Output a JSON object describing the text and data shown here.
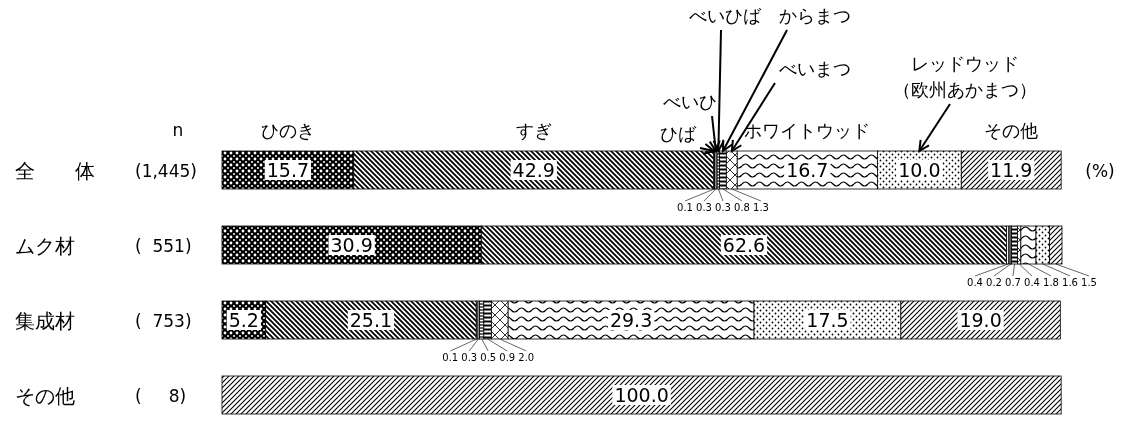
{
  "chart_data": {
    "type": "bar",
    "orientation": "horizontal",
    "stacked": true,
    "legend": false,
    "categories": [
      "全　　体",
      "ムク材",
      "集成材",
      "その他"
    ],
    "series": [
      {
        "name": "ひのき",
        "color": "#000000",
        "values": [
          15.7,
          30.9,
          5.2,
          null
        ],
        "value_labels": [
          "15.7",
          "30.9",
          "5.2",
          null
        ]
      },
      {
        "name": "すぎ",
        "color": "#000000",
        "values": [
          42.9,
          62.6,
          25.1,
          null
        ],
        "value_labels": [
          "42.9",
          "62.6",
          "25.1",
          null
        ]
      },
      {
        "name": "ひば",
        "color": "#000000",
        "values": [
          0.1,
          0.4,
          0.1,
          null
        ],
        "value_labels": [
          "0.1",
          "0.4",
          "0.1",
          null
        ]
      },
      {
        "name": "べいひ",
        "color": "#000000",
        "values": [
          0.3,
          0.2,
          0.3,
          null
        ],
        "value_labels": [
          "0.3",
          "0.2",
          "0.3",
          null
        ]
      },
      {
        "name": "べいひば",
        "color": "#000000",
        "values": [
          0.3,
          null,
          0.5,
          null
        ],
        "value_labels": [
          "0.3",
          null,
          "0.5",
          null
        ]
      },
      {
        "name": "からまつ",
        "color": "#000000",
        "values": [
          0.8,
          0.7,
          0.9,
          null
        ],
        "value_labels": [
          "0.8",
          "0.7",
          "0.9",
          null
        ]
      },
      {
        "name": "べいまつ",
        "color": "#000000",
        "values": [
          1.3,
          0.4,
          2.0,
          null
        ],
        "value_labels": [
          "1.3",
          "0.4",
          "2.0",
          null
        ]
      },
      {
        "name": "ホワイトウッド",
        "color": "#000000",
        "values": [
          16.7,
          1.8,
          29.3,
          null
        ],
        "value_labels": [
          "16.7",
          "1.8",
          "29.3",
          null
        ]
      },
      {
        "name": "レッドウッド（欧州あかまつ）",
        "color": "#000000",
        "values": [
          10.0,
          1.6,
          17.5,
          null
        ],
        "value_labels": [
          "10.0",
          "1.6",
          "17.5",
          null
        ]
      },
      {
        "name": "その他",
        "color": "#000000",
        "values": [
          11.9,
          1.5,
          19.0,
          100.0
        ],
        "value_labels": [
          "11.9",
          "1.5",
          "19.0",
          "100.0"
        ]
      }
    ],
    "annotations": [
      "n",
      "(1,445)",
      "(  551)",
      "(  753)",
      "(     8)",
      "(%)"
    ]
  }
}
